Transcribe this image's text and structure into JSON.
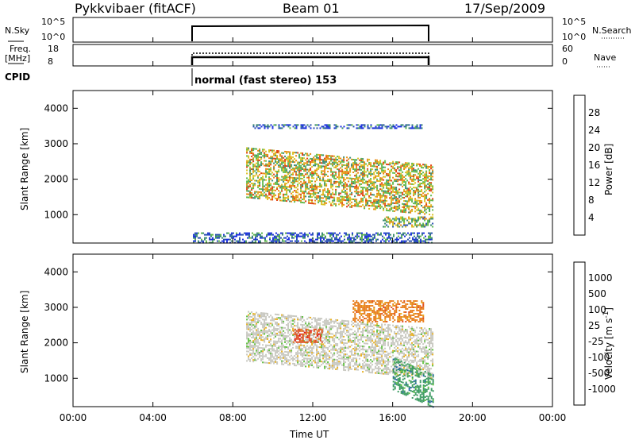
{
  "header": {
    "radar": "Pykkvibaer (fitACF)",
    "beam": "Beam 01",
    "date": "17/Sep/2009"
  },
  "nsky_panel": {
    "left_label": "N.Sky",
    "left_ticks": [
      "10^5",
      "10^0"
    ],
    "right_ticks": [
      "10^5",
      "10^0"
    ],
    "right_label": "N.Search"
  },
  "freq_panel": {
    "left_label_1": "Freq.",
    "left_label_2": "[MHz]",
    "left_ticks": [
      "18",
      "8"
    ],
    "right_ticks": [
      "60",
      "0"
    ],
    "right_label": "Nave"
  },
  "cpid": {
    "label": "CPID",
    "text": "normal (fast stereo) 153"
  },
  "colors": {
    "power_scale": [
      "#1a2fe0",
      "#2850b0",
      "#3a8a70",
      "#5fb84a",
      "#d8c020",
      "#e88a10",
      "#e04010",
      "#e01010"
    ],
    "velocity_scale": [
      "#2030c0",
      "#2060a0",
      "#3a9a60",
      "#60c040",
      "#c8c8c0",
      "#e8b020",
      "#e88020",
      "#e05020",
      "#e01010"
    ]
  },
  "chart_data": [
    {
      "type": "heatmap",
      "panel": "power",
      "ylabel": "Slant Range [km]",
      "yticks": [
        "1000",
        "2000",
        "3000",
        "4000"
      ],
      "ylim": [
        200,
        4500
      ],
      "xlim": [
        "00:00",
        "24:00"
      ],
      "data_start": "06:00",
      "data_end": "18:00",
      "colorbar_label": "Power [dB]",
      "colorbar_ticks": [
        "4",
        "8",
        "12",
        "16",
        "20",
        "24",
        "28"
      ],
      "colorbar_range": [
        0,
        30
      ],
      "echo_bands": [
        {
          "from": "08:40",
          "to": "18:00",
          "range_km": [
            1500,
            2900
          ],
          "power_db": 16
        },
        {
          "from": "09:00",
          "to": "17:30",
          "range_km": [
            3450,
            3550
          ],
          "power_db": 6
        },
        {
          "from": "06:00",
          "to": "18:00",
          "range_km": [
            200,
            500
          ],
          "power_db": 6
        },
        {
          "from": "15:30",
          "to": "18:00",
          "range_km": [
            650,
            950
          ],
          "power_db": 14
        }
      ]
    },
    {
      "type": "heatmap",
      "panel": "velocity",
      "ylabel": "Slant Range [km]",
      "xlabel": "Time UT",
      "yticks": [
        "1000",
        "2000",
        "3000",
        "4000"
      ],
      "ylim": [
        200,
        4500
      ],
      "xticks": [
        "00:00",
        "04:00",
        "08:00",
        "12:00",
        "16:00",
        "20:00",
        "00:00"
      ],
      "colorbar_label": "Velocity [m s^-1]",
      "colorbar_ticks": [
        "1000",
        "500",
        "100",
        "25",
        "-25",
        "-100",
        "-500",
        "-1000"
      ],
      "echo_bands": [
        {
          "from": "08:40",
          "to": "18:00",
          "range_km": [
            1500,
            2900
          ],
          "velocity": 0
        },
        {
          "from": "11:00",
          "to": "12:30",
          "range_km": [
            2000,
            2400
          ],
          "velocity": -700
        },
        {
          "from": "14:00",
          "to": "17:30",
          "range_km": [
            2600,
            3200
          ],
          "velocity": -300
        },
        {
          "from": "16:00",
          "to": "18:00",
          "range_km": [
            700,
            1600
          ],
          "velocity": 150
        }
      ]
    }
  ]
}
